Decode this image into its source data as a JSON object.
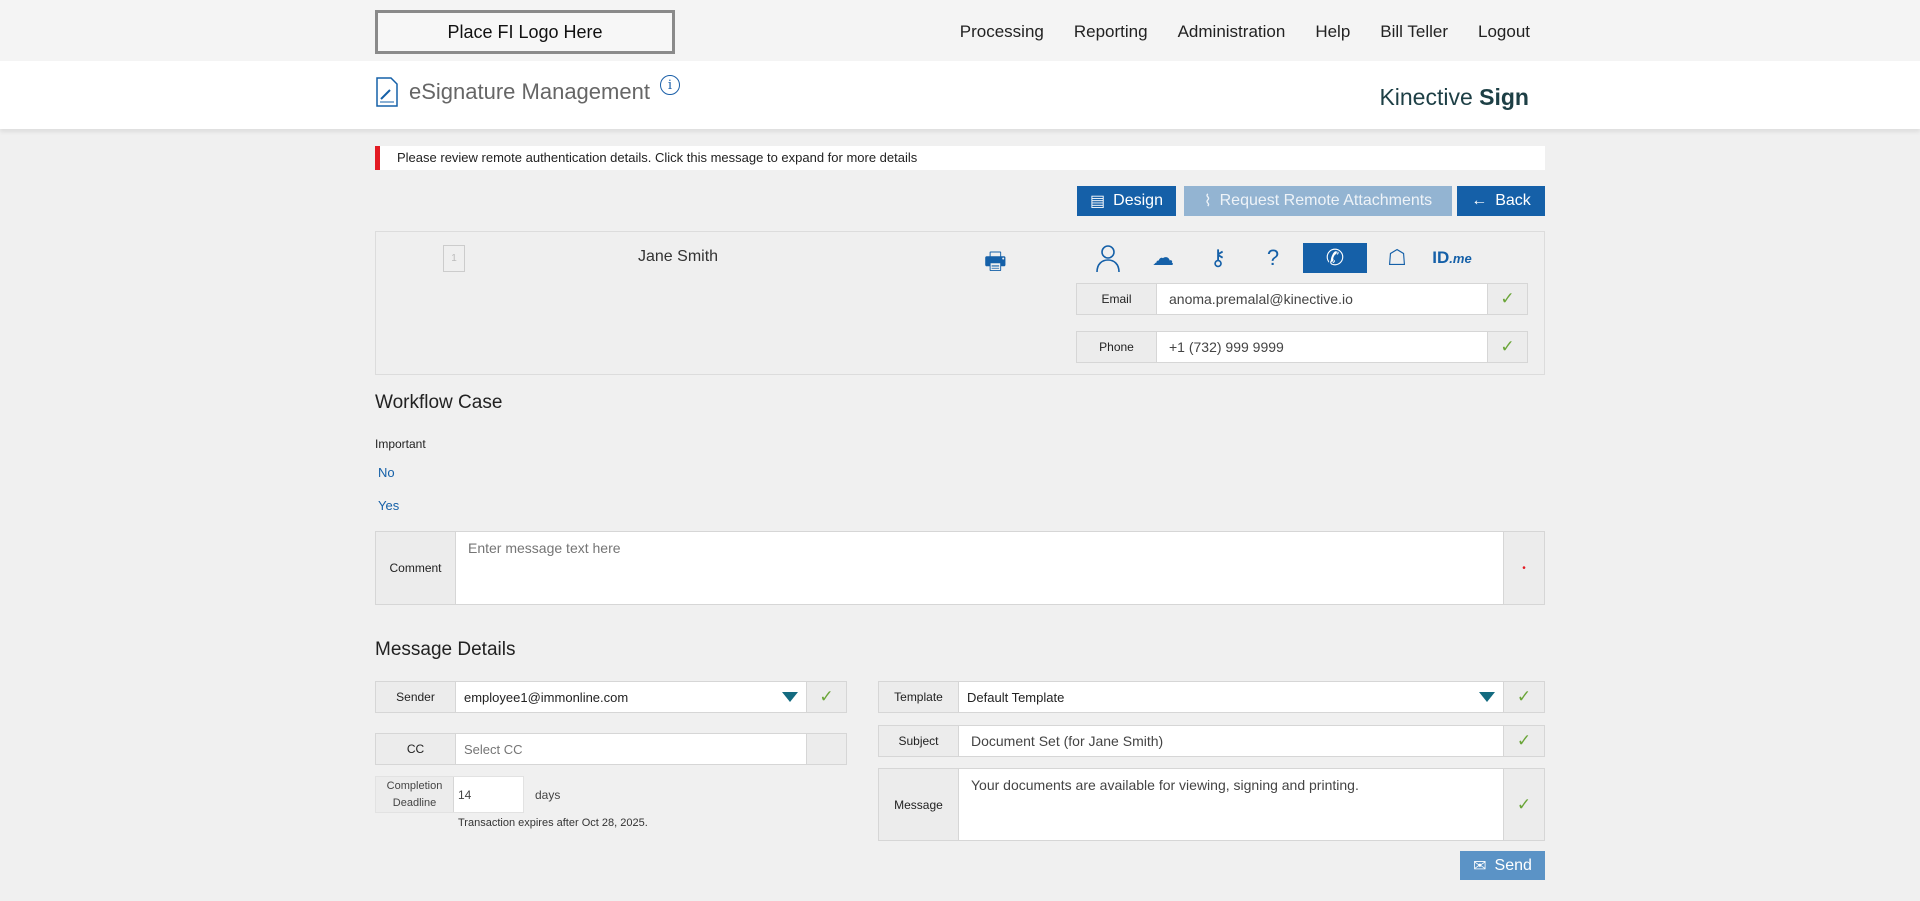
{
  "topbar": {
    "logo": "Place FI Logo Here",
    "nav": [
      "Processing",
      "Reporting",
      "Administration",
      "Help",
      "Bill Teller",
      "Logout"
    ]
  },
  "header": {
    "title": "eSignature Management",
    "brand_light": "Kinective",
    "brand_bold": "Sign"
  },
  "alert": {
    "text": "Please review remote authentication details. Click this message to expand for more details",
    "color": "#e31b23"
  },
  "toolbar": {
    "design": "Design",
    "request": "Request Remote Attachments",
    "back": "Back"
  },
  "recipient": {
    "name": "Jane Smith",
    "doc_count": "1",
    "auth_icons": [
      "person-icon",
      "cloud-email-icon",
      "cloud-key-icon",
      "cloud-question-shield-icon",
      "cloud-phone-icon",
      "cloud-id-icon",
      "idme-icon"
    ],
    "active_auth": "cloud-phone-icon",
    "idme_label_bold": "ID",
    "idme_label_rest": ".me",
    "email_label": "Email",
    "email": "anoma.premalal@kinective.io",
    "phone_label": "Phone",
    "phone": "+1 (732) 999 9999"
  },
  "workflow": {
    "title": "Workflow Case",
    "important_label": "Important",
    "option_no": "No",
    "option_yes": "Yes",
    "comment_label": "Comment",
    "comment_placeholder": "Enter message text here"
  },
  "message": {
    "title": "Message Details",
    "sender_label": "Sender",
    "sender": "employee1@immonline.com",
    "cc_label": "CC",
    "cc_placeholder": "Select CC",
    "deadline_label": "Completion Deadline",
    "deadline": "14",
    "deadline_unit": "days",
    "expires": "Transaction expires after Oct 28, 2025.",
    "template_label": "Template",
    "template": "Default Template",
    "subject_label": "Subject",
    "subject": "Document Set (for Jane Smith)",
    "message_label": "Message",
    "message_text": "Your documents are available for viewing, signing and printing.",
    "send": "Send"
  },
  "colors": {
    "primary": "#1560a8",
    "check": "#6aa538"
  }
}
